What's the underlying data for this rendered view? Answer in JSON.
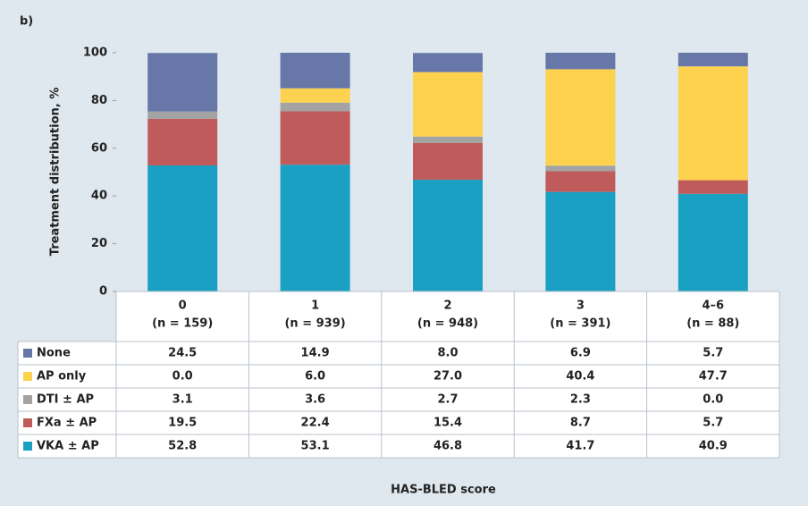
{
  "chart_data": {
    "type": "stacked_bar",
    "panel_label": "b)",
    "ylabel": "Treatment distribution, %",
    "xlabel": "HAS-BLED score",
    "categories": [
      "0",
      "1",
      "2",
      "3",
      "4–6"
    ],
    "category_sublabels": [
      "(n = 159)",
      "(n = 939)",
      "(n = 948)",
      "(n = 391)",
      "(n = 88)"
    ],
    "ylim": [
      0,
      100
    ],
    "yticks": [
      0,
      20,
      40,
      60,
      80,
      100
    ],
    "grid": false,
    "series": [
      {
        "name": "None",
        "color": "#6677a8",
        "values": [
          24.5,
          14.9,
          8.0,
          6.9,
          5.7
        ],
        "value_labels": [
          "24.5",
          "14.9",
          "8.0",
          "6.9",
          "5.7"
        ]
      },
      {
        "name": "AP only",
        "color": "#fdd24f",
        "values": [
          0.0,
          6.0,
          27.0,
          40.4,
          47.7
        ],
        "value_labels": [
          "0.0",
          "6.0",
          "27.0",
          "40.4",
          "47.7"
        ]
      },
      {
        "name": "DTI ± AP",
        "color": "#a3a3a3",
        "values": [
          3.1,
          3.6,
          2.7,
          2.3,
          0.0
        ],
        "value_labels": [
          "3.1",
          "3.6",
          "2.7",
          "2.3",
          "0.0"
        ]
      },
      {
        "name": "FXa ± AP",
        "color": "#c05b5b",
        "values": [
          19.5,
          22.4,
          15.4,
          8.7,
          5.7
        ],
        "value_labels": [
          "19.5",
          "22.4",
          "15.4",
          "8.7",
          "5.7"
        ]
      },
      {
        "name": "VKA ± AP",
        "color": "#1aa0c2",
        "values": [
          52.8,
          53.1,
          46.8,
          41.7,
          40.9
        ],
        "value_labels": [
          "52.8",
          "53.1",
          "46.8",
          "41.7",
          "40.9"
        ]
      }
    ]
  }
}
